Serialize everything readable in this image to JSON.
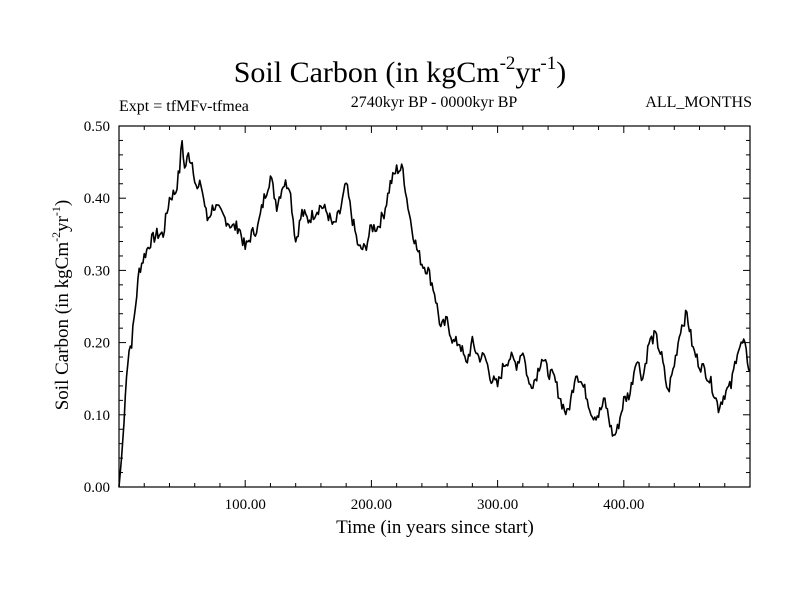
{
  "header": {
    "title_main": "Soil Carbon (in kgCm",
    "title_exp1": "-2",
    "title_mid": "yr",
    "title_exp2": "-1",
    "title_end": ")",
    "expt": "Expt = tfMFv-tfmea",
    "period": "2740kyr BP - 0000kyr BP",
    "months": "ALL_MONTHS"
  },
  "axes": {
    "ylabel_main": "Soil Carbon (in kgCm",
    "ylabel_exp1": "-2",
    "ylabel_mid": "yr",
    "ylabel_exp2": "-1",
    "ylabel_end": ")",
    "xlabel": "Time (in years since start)"
  },
  "chart_data": {
    "type": "line",
    "title": "Soil Carbon (in kgCm-2yr-1)",
    "xlabel": "Time (in years since start)",
    "ylabel": "Soil Carbon (in kgCm-2yr-1)",
    "xlim": [
      0,
      500
    ],
    "ylim": [
      0,
      0.5
    ],
    "grid": false,
    "x_ticks": [
      100,
      200,
      300,
      400
    ],
    "x_tick_labels": [
      "100.00",
      "200.00",
      "300.00",
      "400.00"
    ],
    "y_ticks": [
      0,
      0.1,
      0.2,
      0.3,
      0.4,
      0.5
    ],
    "y_tick_labels": [
      "0.00",
      "0.10",
      "0.20",
      "0.30",
      "0.40",
      "0.50"
    ],
    "series": [
      {
        "name": "tfMFv-tfmea",
        "color": "#000000",
        "x": [
          0,
          2,
          4,
          6,
          8,
          10,
          13,
          16,
          20,
          25,
          30,
          35,
          40,
          45,
          48,
          50,
          52,
          55,
          58,
          62,
          65,
          70,
          75,
          80,
          85,
          90,
          95,
          100,
          105,
          110,
          115,
          120,
          125,
          130,
          135,
          140,
          145,
          150,
          155,
          160,
          165,
          170,
          175,
          180,
          185,
          190,
          195,
          200,
          205,
          210,
          215,
          220,
          225,
          228,
          232,
          236,
          240,
          245,
          250,
          255,
          260,
          265,
          270,
          275,
          280,
          285,
          290,
          295,
          300,
          305,
          310,
          315,
          320,
          325,
          330,
          335,
          340,
          345,
          350,
          355,
          358,
          362,
          365,
          370,
          375,
          380,
          385,
          390,
          392,
          395,
          400,
          405,
          410,
          415,
          420,
          425,
          430,
          435,
          440,
          445,
          450,
          455,
          460,
          465,
          470,
          475,
          480,
          485,
          490,
          495,
          500
        ],
        "values": [
          0.0,
          0.04,
          0.09,
          0.16,
          0.19,
          0.2,
          0.25,
          0.3,
          0.32,
          0.34,
          0.35,
          0.35,
          0.4,
          0.41,
          0.44,
          0.48,
          0.44,
          0.46,
          0.45,
          0.41,
          0.42,
          0.37,
          0.39,
          0.38,
          0.37,
          0.36,
          0.36,
          0.33,
          0.35,
          0.36,
          0.4,
          0.43,
          0.39,
          0.42,
          0.42,
          0.34,
          0.38,
          0.37,
          0.38,
          0.39,
          0.38,
          0.36,
          0.38,
          0.42,
          0.37,
          0.33,
          0.33,
          0.36,
          0.36,
          0.38,
          0.42,
          0.44,
          0.44,
          0.4,
          0.36,
          0.33,
          0.31,
          0.3,
          0.27,
          0.22,
          0.23,
          0.2,
          0.2,
          0.17,
          0.2,
          0.18,
          0.18,
          0.15,
          0.14,
          0.17,
          0.18,
          0.17,
          0.19,
          0.14,
          0.15,
          0.18,
          0.16,
          0.15,
          0.12,
          0.1,
          0.12,
          0.16,
          0.15,
          0.13,
          0.1,
          0.1,
          0.12,
          0.08,
          0.07,
          0.08,
          0.12,
          0.13,
          0.18,
          0.15,
          0.2,
          0.21,
          0.18,
          0.13,
          0.17,
          0.22,
          0.24,
          0.19,
          0.17,
          0.16,
          0.14,
          0.11,
          0.13,
          0.14,
          0.19,
          0.2,
          0.16
        ]
      }
    ]
  }
}
